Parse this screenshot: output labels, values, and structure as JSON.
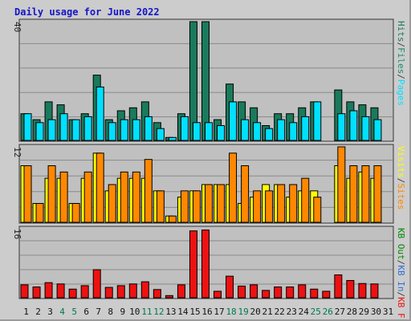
{
  "title": "Daily usage for June 2022",
  "colors": {
    "background": "#cccccc",
    "plot_bg": "#c0c0c0",
    "pages": "#00e0ff",
    "files": "#1a8a6e",
    "hits": "#1a7a5c",
    "visits": "#ffff00",
    "sites": "#ff8800",
    "kb_in": "#2e6fd8",
    "kb_out": "#008800",
    "kb_f": "#ee1111",
    "weekend_label": "#007755",
    "weekday_label": "#111111",
    "slash": "#444444"
  },
  "chart_data": [
    {
      "type": "bar",
      "panel": "top",
      "ymax": 40,
      "ymax_label": "40",
      "ylim": [
        0,
        40
      ],
      "grid": true,
      "legend": [
        "Pages",
        "/",
        "Files",
        "/",
        "Hits"
      ],
      "categories": [
        "1",
        "2",
        "3",
        "4",
        "5",
        "6",
        "7",
        "8",
        "9",
        "10",
        "11",
        "12",
        "13",
        "14",
        "15",
        "16",
        "17",
        "18",
        "19",
        "20",
        "21",
        "22",
        "23",
        "24",
        "25",
        "26",
        "27",
        "28",
        "29",
        "30",
        "31"
      ],
      "series": [
        {
          "name": "Hits",
          "values": [
            9,
            7,
            13,
            12,
            7,
            9,
            22,
            7,
            10,
            11,
            13,
            6,
            1,
            9,
            40,
            40,
            7,
            19,
            13,
            11,
            5,
            9,
            9,
            11,
            13,
            0,
            17,
            13,
            12,
            11,
            0
          ]
        },
        {
          "name": "Files",
          "values": [
            9,
            7,
            13,
            12,
            7,
            9,
            22,
            7,
            10,
            11,
            13,
            6,
            1,
            9,
            40,
            40,
            7,
            19,
            13,
            11,
            5,
            9,
            9,
            11,
            13,
            0,
            17,
            13,
            12,
            11,
            0
          ]
        },
        {
          "name": "Pages",
          "values": [
            9,
            6,
            7,
            9,
            7,
            8,
            18,
            6,
            7,
            7,
            8,
            4,
            1,
            8,
            6,
            6,
            5,
            13,
            7,
            6,
            4,
            7,
            6,
            8,
            13,
            0,
            9,
            10,
            8,
            7,
            0
          ]
        }
      ]
    },
    {
      "type": "bar",
      "panel": "middle",
      "ymax": 12,
      "ymax_label": "12",
      "ylim": [
        0,
        12
      ],
      "grid": true,
      "legend": [
        "Visits",
        "/",
        "Sites"
      ],
      "categories": [
        "1",
        "2",
        "3",
        "4",
        "5",
        "6",
        "7",
        "8",
        "9",
        "10",
        "11",
        "12",
        "13",
        "14",
        "15",
        "16",
        "17",
        "18",
        "19",
        "20",
        "21",
        "22",
        "23",
        "24",
        "25",
        "26",
        "27",
        "28",
        "29",
        "30",
        "31"
      ],
      "series": [
        {
          "name": "Visits",
          "values": [
            9,
            3,
            7,
            7,
            3,
            7,
            11,
            5,
            7,
            7,
            7,
            5,
            1,
            4,
            5,
            6,
            6,
            6,
            3,
            4,
            6,
            6,
            4,
            5,
            5,
            0,
            9,
            7,
            8,
            7,
            0
          ]
        },
        {
          "name": "Sites",
          "values": [
            9,
            3,
            9,
            8,
            3,
            8,
            11,
            6,
            8,
            8,
            10,
            5,
            1,
            5,
            5,
            6,
            6,
            11,
            9,
            5,
            5,
            6,
            6,
            7,
            4,
            0,
            12,
            9,
            9,
            9,
            0
          ]
        }
      ]
    },
    {
      "type": "bar",
      "panel": "bottom",
      "ymax": 16,
      "ymax_label": "16",
      "ylim": [
        0,
        16
      ],
      "grid": true,
      "legend": [
        "KB F",
        "/",
        "KB In",
        "/",
        "KB Out"
      ],
      "categories": [
        "1",
        "2",
        "3",
        "4",
        "5",
        "6",
        "7",
        "8",
        "9",
        "10",
        "11",
        "12",
        "13",
        "14",
        "15",
        "16",
        "17",
        "18",
        "19",
        "20",
        "21",
        "22",
        "23",
        "24",
        "25",
        "26",
        "27",
        "28",
        "29",
        "30",
        "31"
      ],
      "weekend_days": [
        "4",
        "5",
        "11",
        "12",
        "18",
        "19",
        "25",
        "26"
      ],
      "series": [
        {
          "name": "KB F",
          "values": [
            3,
            2.5,
            3.5,
            3.2,
            2,
            2.8,
            6.5,
            2.4,
            2.8,
            3.2,
            3.7,
            1.9,
            0.5,
            3,
            15.5,
            15.7,
            1.5,
            5,
            2.7,
            3,
            1.7,
            2.5,
            2.5,
            3,
            2,
            1.5,
            5.3,
            4,
            3.3,
            3.2,
            0
          ]
        }
      ]
    }
  ]
}
